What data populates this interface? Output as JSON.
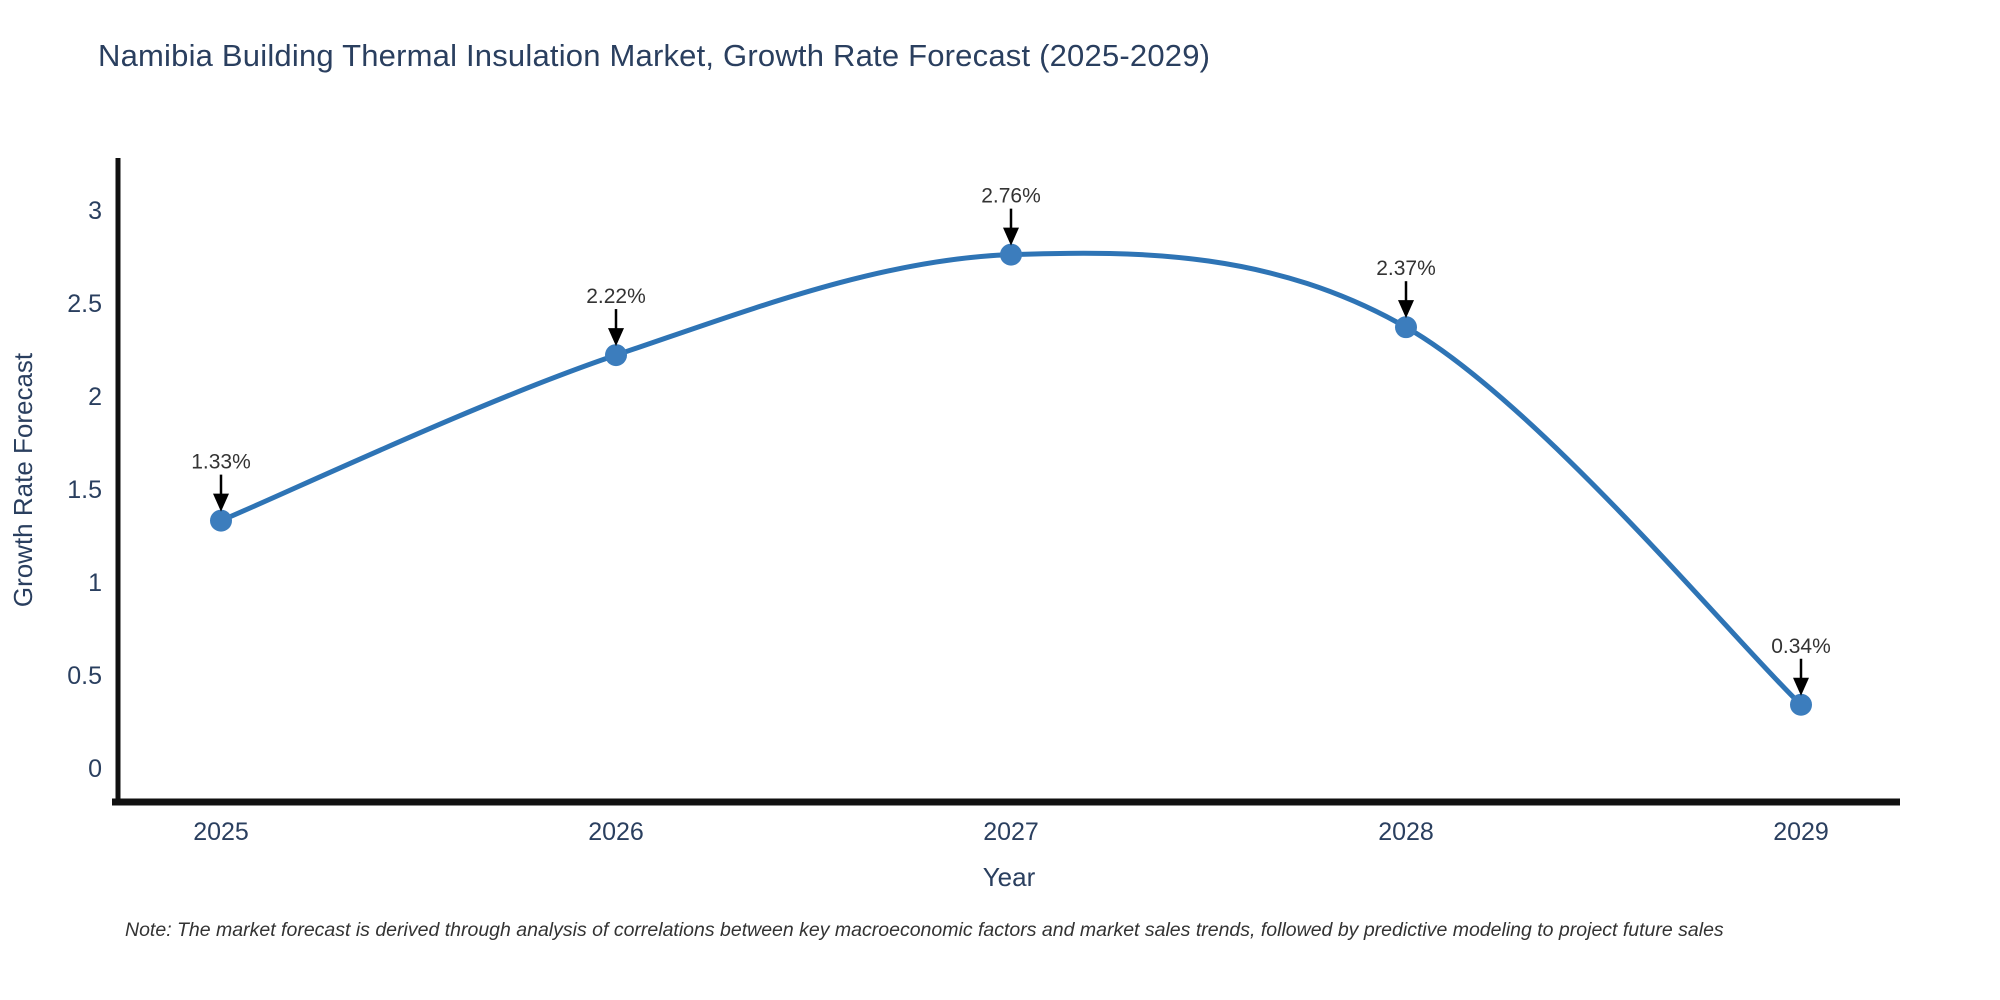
{
  "title": "Namibia Building Thermal Insulation Market, Growth Rate Forecast (2025-2029)",
  "note": "Note: The market forecast is derived through analysis of correlations between key macroeconomic factors and market sales trends, followed by predictive modeling to project future sales",
  "colors": {
    "line": "#2e74b5",
    "marker": "#3c7dbd",
    "axis": "#111111",
    "text": "#2a3f5f",
    "annotation_text": "#333333",
    "arrow": "#000000",
    "background": "#ffffff"
  },
  "chart_data": {
    "type": "line",
    "title": "Namibia Building Thermal Insulation Market, Growth Rate Forecast (2025-2029)",
    "xlabel": "Year",
    "ylabel": "Growth Rate Forecast",
    "categories": [
      "2025",
      "2026",
      "2027",
      "2028",
      "2029"
    ],
    "series": [
      {
        "name": "Growth Rate Forecast",
        "values": [
          1.33,
          2.22,
          2.76,
          2.37,
          0.34
        ]
      }
    ],
    "point_labels": [
      "1.33%",
      "2.22%",
      "2.76%",
      "2.37%",
      "0.34%"
    ],
    "yticks": [
      0,
      0.5,
      1,
      1.5,
      2,
      2.5,
      3
    ],
    "ylim": [
      -0.18,
      3.28
    ],
    "grid": false,
    "legend": "none",
    "line_shape": "spline",
    "annotations_have_arrows": true
  }
}
